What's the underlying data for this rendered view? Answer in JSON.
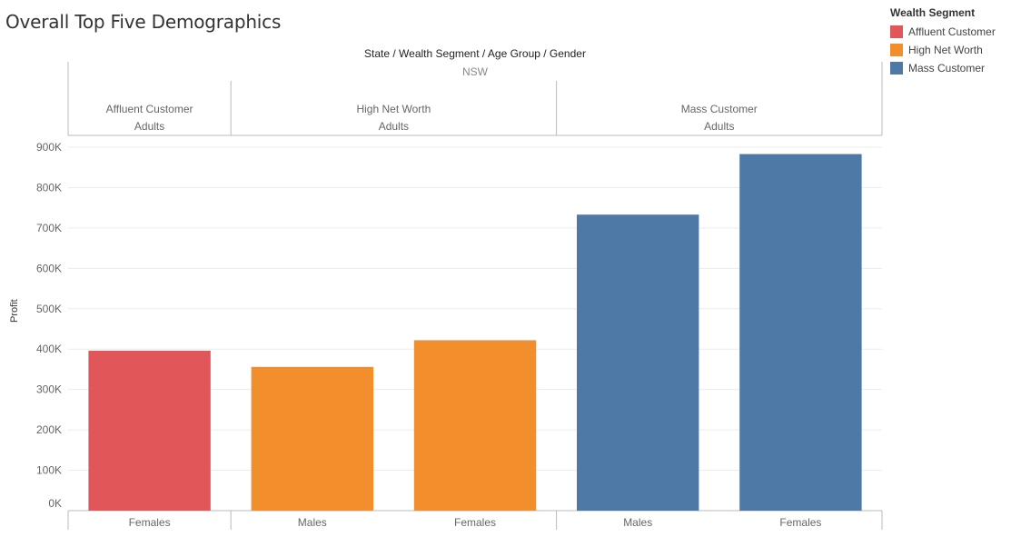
{
  "title": "Overall Top Five Demographics",
  "header_title": "State / Wealth Segment / Age Group / Gender",
  "state": "NSW",
  "legend": {
    "title": "Wealth Segment",
    "items": [
      {
        "label": "Affluent Customer",
        "color": "#e15759"
      },
      {
        "label": "High Net Worth",
        "color": "#f28e2b"
      },
      {
        "label": "Mass Customer",
        "color": "#4e79a7"
      }
    ]
  },
  "segments": [
    {
      "name": "Affluent Customer",
      "age": "Adults",
      "bars": 1
    },
    {
      "name": "High Net Worth",
      "age": "Adults",
      "bars": 2
    },
    {
      "name": "Mass Customer",
      "age": "Adults",
      "bars": 2
    }
  ],
  "chart_data": {
    "type": "bar",
    "categories": [
      "Females",
      "Males",
      "Females",
      "Males",
      "Females"
    ],
    "groups": [
      "Affluent Customer",
      "High Net Worth",
      "High Net Worth",
      "Mass Customer",
      "Mass Customer"
    ],
    "values": [
      396000,
      356000,
      422000,
      733000,
      883000
    ],
    "colors": [
      "#e15759",
      "#f28e2b",
      "#f28e2b",
      "#4e79a7",
      "#4e79a7"
    ],
    "ylabel": "Profit",
    "ylim": [
      0,
      900000
    ],
    "yticks": [
      0,
      100000,
      200000,
      300000,
      400000,
      500000,
      600000,
      700000,
      800000,
      900000
    ],
    "ytick_labels": [
      "0K",
      "100K",
      "200K",
      "300K",
      "400K",
      "500K",
      "600K",
      "700K",
      "800K",
      "900K"
    ],
    "grid": true
  }
}
